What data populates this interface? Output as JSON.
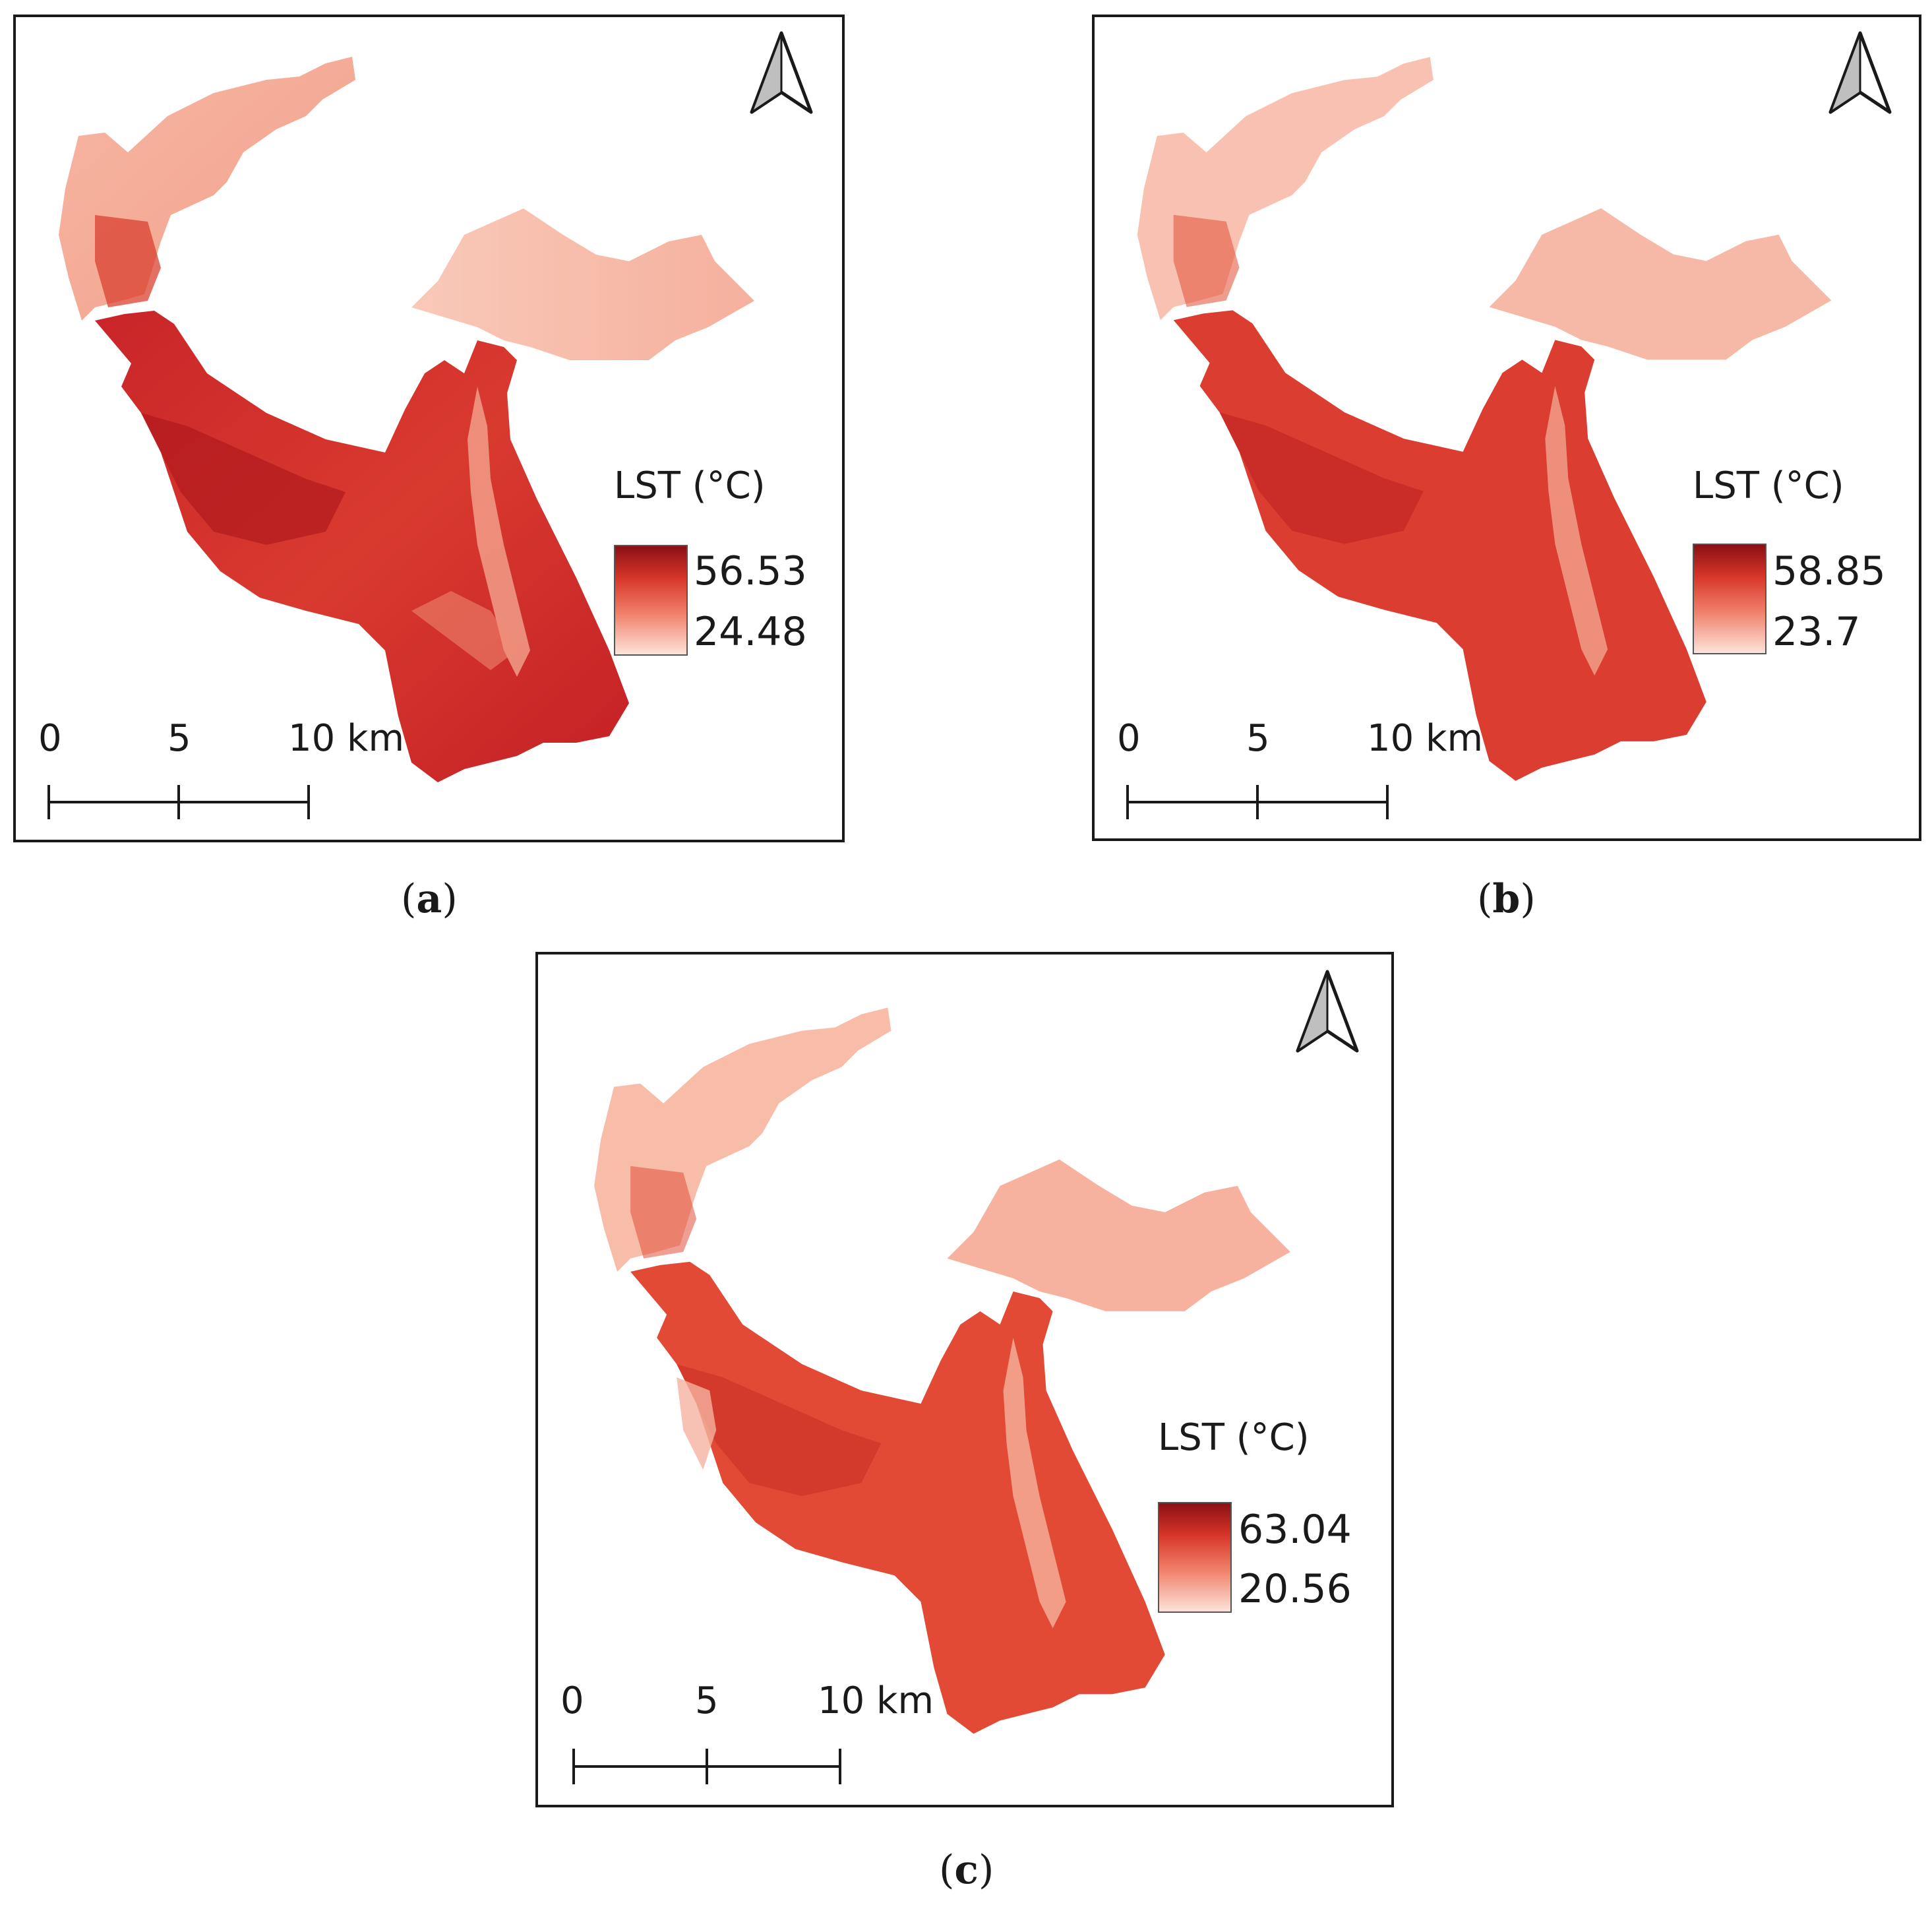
{
  "panels": [
    {
      "id": "a",
      "legend_title": "LST (°C)",
      "legend_max": "56.53",
      "legend_min": "24.48",
      "scale_labels": [
        "0",
        "5",
        "10 km"
      ],
      "caption_open": "(",
      "caption_letter": "a",
      "caption_close": ")"
    },
    {
      "id": "b",
      "legend_title": "LST (°C)",
      "legend_max": "58.85",
      "legend_min": "23.7",
      "scale_labels": [
        "0",
        "5",
        "10 km"
      ],
      "caption_open": "(",
      "caption_letter": "b",
      "caption_close": ")"
    },
    {
      "id": "c",
      "legend_title": "LST (°C)",
      "legend_max": "63.04",
      "legend_min": "20.56",
      "scale_labels": [
        "0",
        "5",
        "10 km"
      ],
      "caption_open": "(",
      "caption_letter": "c",
      "caption_close": ")"
    }
  ],
  "colors": {
    "ramp_high": "#8b0f14",
    "ramp_mid": "#e8553f",
    "ramp_low": "#fde3da",
    "frame": "#1a1a1a"
  },
  "icons": {
    "north_arrow": "north-arrow-icon"
  }
}
